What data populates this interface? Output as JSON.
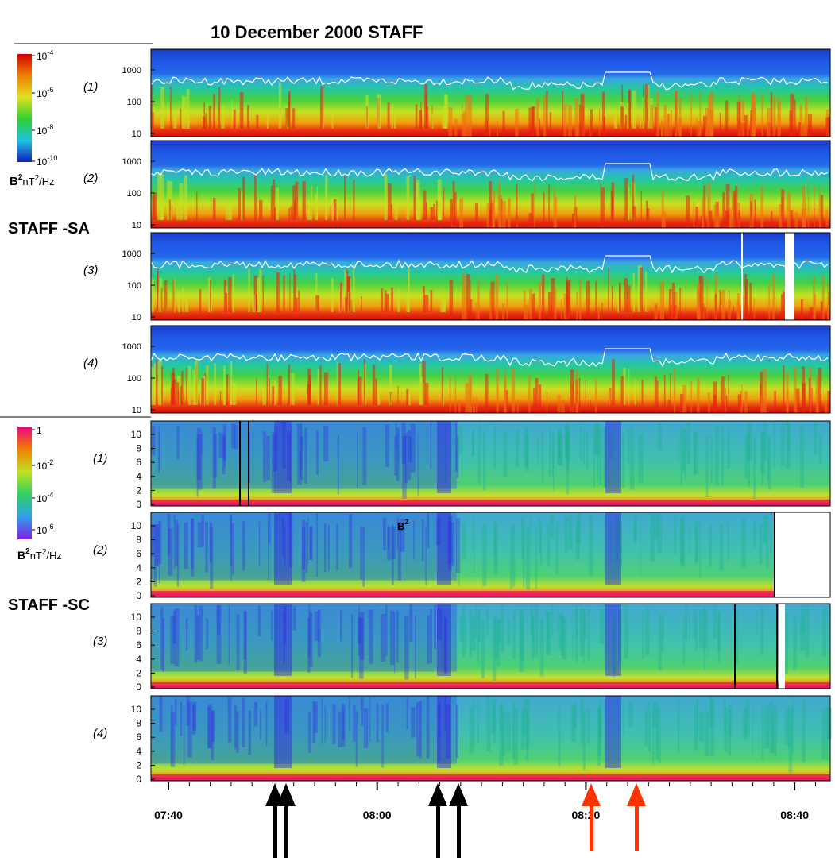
{
  "title": "10 December 2000 STAFF",
  "sa": {
    "name": "STAFF -SA",
    "panels": [
      "(1)",
      "(2)",
      "(3)",
      "(4)"
    ],
    "yticks": [
      1000,
      100,
      10
    ],
    "colorbar": [
      {
        "base": "10",
        "exponent": "-4"
      },
      {
        "base": "10",
        "exponent": "-6"
      },
      {
        "base": "10",
        "exponent": "-8"
      },
      {
        "base": "10",
        "exponent": "-10"
      }
    ],
    "unit": {
      "b": "B",
      "b_power": "2",
      "nt": "nT",
      "nt_power": "2",
      "hz": "/Hz"
    }
  },
  "sc": {
    "name": "STAFF -SC",
    "panels": [
      "(1)",
      "(2)",
      "(3)",
      "(4)"
    ],
    "yticks": [
      0,
      2,
      4,
      6,
      8,
      10
    ],
    "colorbar": [
      {
        "base": "1"
      },
      {
        "base": "10",
        "exponent": "-2"
      },
      {
        "base": "10",
        "exponent": "-4"
      },
      {
        "base": "10",
        "exponent": "-6"
      }
    ],
    "unit": {
      "b": "B",
      "b_power": "2",
      "nt": "nT",
      "nt_power": "2",
      "hz": "/Hz"
    },
    "annotation": {
      "text": "B",
      "power": "2"
    }
  },
  "xticks": [
    "07:40",
    "08:00",
    "08:20",
    "08:40"
  ]
}
